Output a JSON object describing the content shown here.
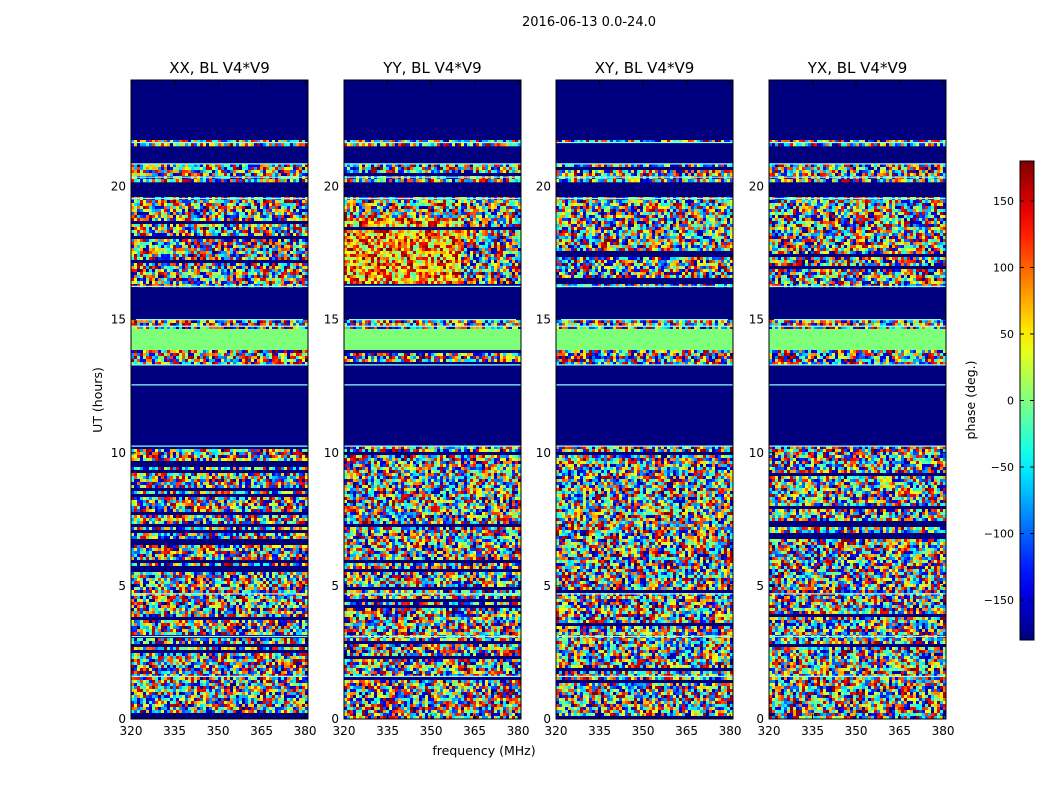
{
  "figure": {
    "suptitle": "2016-06-13 0.0-24.0",
    "xlabel": "frequency (MHz)",
    "ylabel": "UT (hours)"
  },
  "colorbar": {
    "label": "phase (deg.)",
    "ticks": [
      150,
      100,
      50,
      0,
      -50,
      -100,
      -150
    ],
    "tick_labels": [
      "150",
      "100",
      "50",
      "0",
      "−50",
      "−100",
      "−150"
    ],
    "range": [
      -180,
      180
    ],
    "colormap": "jet"
  },
  "colors": {
    "masked": "#00007f",
    "constant_band": "#7dff7a",
    "line": "#8affff"
  },
  "chart_data": {
    "type": "heatmap",
    "title": "2016-06-13 0.0-24.0",
    "xlabel": "frequency (MHz)",
    "ylabel": "UT (hours)",
    "xlim": [
      320,
      381
    ],
    "ylim": [
      0,
      24
    ],
    "xticks": [
      320,
      335,
      350,
      365,
      380
    ],
    "yticks": [
      0,
      5,
      10,
      15,
      20
    ],
    "zlabel": "phase (deg.)",
    "zlim": [
      -180,
      180
    ],
    "panels": [
      {
        "title": "XX, BL V4*V9",
        "pol": "XX"
      },
      {
        "title": "YY, BL V4*V9",
        "pol": "YY"
      },
      {
        "title": "XY, BL V4*V9",
        "pol": "XY"
      },
      {
        "title": "YX, BL V4*V9",
        "pol": "YX"
      }
    ],
    "masked_intervals_ut": [
      [
        21.8,
        24.0
      ],
      [
        15.0,
        16.2
      ],
      [
        12.5,
        13.3
      ],
      [
        10.3,
        12.5
      ],
      [
        20.9,
        21.5
      ],
      [
        19.6,
        20.2
      ]
    ],
    "constant_phase_intervals_ut": [
      [
        13.9,
        14.6
      ]
    ],
    "constant_phase_value_deg": 0
  }
}
